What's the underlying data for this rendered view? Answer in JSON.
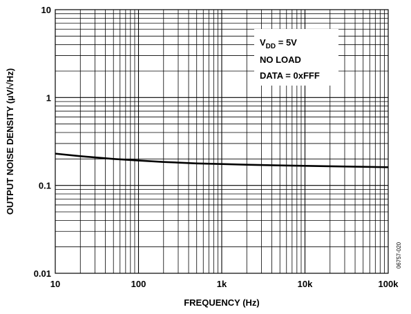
{
  "chart_data": {
    "type": "line",
    "xlabel": "FREQUENCY (Hz)",
    "ylabel": "OUTPUT NOISE DENSITY (µV/√Hz)",
    "x_scale": "log",
    "y_scale": "log",
    "xlim": [
      10,
      100000
    ],
    "ylim": [
      0.01,
      10
    ],
    "grid": true,
    "x_ticks": [
      {
        "value": 10,
        "label": "10"
      },
      {
        "value": 100,
        "label": "100"
      },
      {
        "value": 1000,
        "label": "1k"
      },
      {
        "value": 10000,
        "label": "10k"
      },
      {
        "value": 100000,
        "label": "100k"
      }
    ],
    "y_ticks": [
      {
        "value": 0.01,
        "label": "0.01"
      },
      {
        "value": 0.1,
        "label": "0.1"
      },
      {
        "value": 1,
        "label": "1"
      },
      {
        "value": 10,
        "label": "10"
      }
    ],
    "series": [
      {
        "color": "#000000",
        "x": [
          10,
          20,
          50,
          100,
          200,
          500,
          1000,
          2000,
          5000,
          10000,
          20000,
          50000,
          100000
        ],
        "y": [
          0.23,
          0.215,
          0.2,
          0.192,
          0.185,
          0.178,
          0.175,
          0.172,
          0.169,
          0.167,
          0.165,
          0.163,
          0.161
        ]
      }
    ],
    "annotation": {
      "lines": [
        {
          "main": "V",
          "sub": "DD",
          "rest": " = 5V"
        },
        {
          "main": "NO LOAD",
          "sub": "",
          "rest": ""
        },
        {
          "main": "DATA = 0xFFF",
          "sub": "",
          "rest": ""
        }
      ],
      "position": "top-right"
    },
    "figure_id": "06757-020"
  }
}
